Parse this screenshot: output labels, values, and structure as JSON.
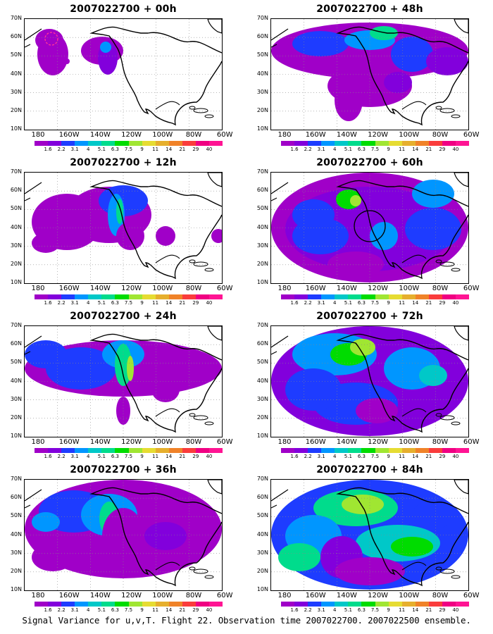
{
  "colorbar": {
    "labels": [
      "1.6",
      "2.2",
      "3.1",
      "4",
      "5.1",
      "6.3",
      "7.5",
      "9",
      "11",
      "14",
      "21",
      "29",
      "40"
    ],
    "colors": [
      "#a000c8",
      "#8200dc",
      "#1e3cff",
      "#0096ff",
      "#00c8c8",
      "#00dc8c",
      "#00dc00",
      "#a0e632",
      "#e6dc32",
      "#e6af2d",
      "#f08228",
      "#fa3c3c",
      "#f00082",
      "#ff1493"
    ]
  },
  "axes": {
    "lat_labels": [
      "70N",
      "60N",
      "50N",
      "40N",
      "30N",
      "20N",
      "10N"
    ],
    "lon_labels": [
      "180",
      "160W",
      "140W",
      "120W",
      "100W",
      "80W",
      "60W"
    ]
  },
  "panels": [
    {
      "id": "p00",
      "title": "2007022700 + 00h"
    },
    {
      "id": "p48",
      "title": "2007022700 + 48h"
    },
    {
      "id": "p12",
      "title": "2007022700 + 12h"
    },
    {
      "id": "p60",
      "title": "2007022700 + 60h"
    },
    {
      "id": "p24",
      "title": "2007022700 + 24h"
    },
    {
      "id": "p72",
      "title": "2007022700 + 72h"
    },
    {
      "id": "p36",
      "title": "2007022700 + 36h"
    },
    {
      "id": "p84",
      "title": "2007022700 + 84h"
    }
  ],
  "caption": "Signal Variance for u,v,T. Flight 22. Observation time 2007022700. 2007022500 ensemble."
}
